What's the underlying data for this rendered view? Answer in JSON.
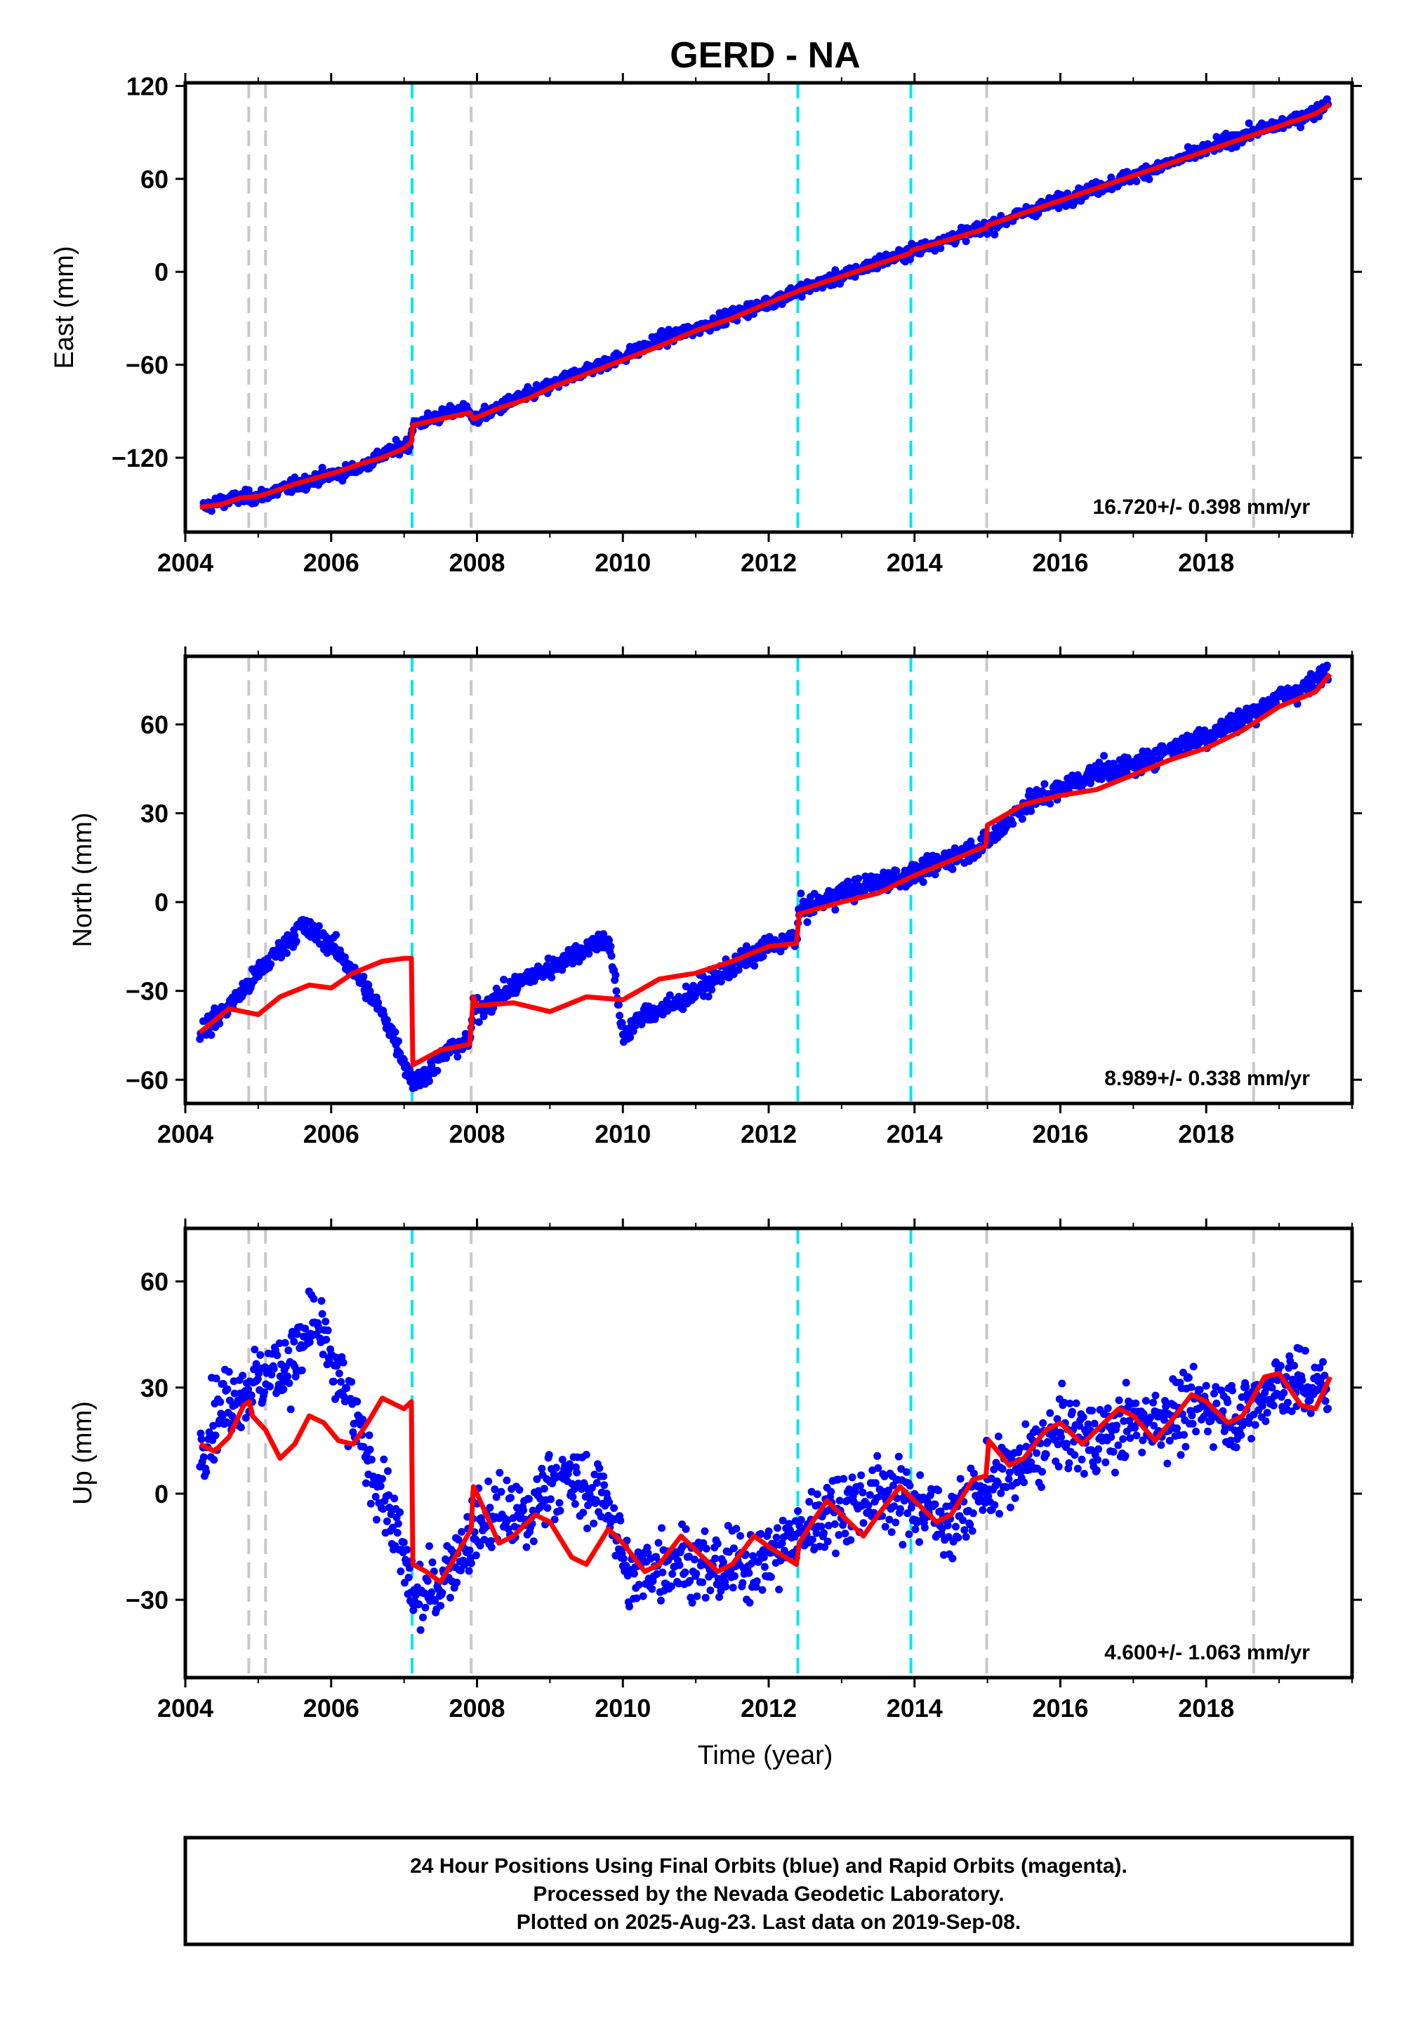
{
  "title": "GERD - NA",
  "caption": {
    "lines": [
      "24 Hour Positions Using Final Orbits (blue) and Rapid Orbits (magenta).",
      "Processed by the Nevada Geodetic Laboratory.",
      "Plotted on 2025-Aug-23. Last data on 2019-Sep-08."
    ]
  },
  "colors": {
    "final_orbit_points": "#0000ff",
    "model_fit": "#ff0000",
    "equipment_change": "#c8c8c8",
    "earthquake": "#00e5ee",
    "frame": "#000000"
  },
  "chart_data": [
    {
      "type": "scatter",
      "component": "East",
      "ylabel": "East (mm)",
      "xlabel": "",
      "xlim": [
        2004.0,
        2020.0
      ],
      "ylim": [
        -168,
        122
      ],
      "xticks": [
        2004,
        2006,
        2008,
        2010,
        2012,
        2014,
        2016,
        2018
      ],
      "yticks": [
        -120,
        -60,
        0,
        60,
        120
      ],
      "rate_label": "16.720+/- 0.398 mm/yr",
      "series_points": {
        "x": [
          2004.25,
          2004.5,
          2004.75,
          2005.0,
          2005.5,
          2005.9,
          2006.3,
          2006.6,
          2006.9,
          2007.08,
          2007.12,
          2007.5,
          2007.9,
          2007.95,
          2008.5,
          2009.0,
          2009.5,
          2010.0,
          2010.5,
          2011.0,
          2011.5,
          2012.0,
          2012.4,
          2013.0,
          2013.5,
          2013.95,
          2014.5,
          2015.0,
          2015.5,
          2016.0,
          2016.5,
          2017.0,
          2017.5,
          2018.0,
          2018.5,
          2019.0,
          2019.5,
          2019.68
        ],
        "y": [
          -152,
          -148,
          -146,
          -145,
          -138,
          -132,
          -128,
          -121,
          -114,
          -111,
          -99,
          -93,
          -88,
          -96,
          -83,
          -74,
          -63,
          -55,
          -44,
          -37,
          -28,
          -20,
          -12,
          -3,
          6,
          13,
          22,
          29,
          38,
          46,
          54,
          62,
          70,
          79,
          88,
          95,
          103,
          111
        ]
      },
      "series_fit": {
        "x": [
          2004.2,
          2004.5,
          2004.75,
          2005.0,
          2005.2,
          2005.5,
          2005.8,
          2006.1,
          2006.4,
          2006.7,
          2007.0,
          2007.1,
          2007.12,
          2007.5,
          2007.9,
          2007.95,
          2008.3,
          2008.7,
          2009.0,
          2009.5,
          2010.0,
          2010.5,
          2011.0,
          2011.5,
          2012.0,
          2012.38,
          2012.42,
          2013.0,
          2013.5,
          2013.94,
          2013.97,
          2014.5,
          2014.98,
          2015.0,
          2015.5,
          2016.0,
          2016.5,
          2017.0,
          2017.5,
          2018.0,
          2018.5,
          2019.0,
          2019.5,
          2019.7
        ],
        "y": [
          -152,
          -150,
          -146,
          -145,
          -142,
          -137,
          -133,
          -129,
          -124,
          -120,
          -114,
          -110,
          -99,
          -95,
          -91,
          -95,
          -88,
          -82,
          -75,
          -66,
          -57,
          -48,
          -38,
          -30,
          -20,
          -13,
          -12,
          -3,
          5,
          12,
          14,
          21,
          28,
          30,
          38,
          46,
          54,
          62,
          70,
          78,
          86,
          94,
          102,
          108
        ]
      }
    },
    {
      "type": "scatter",
      "component": "North",
      "ylabel": "North (mm)",
      "xlabel": "",
      "xlim": [
        2004.0,
        2020.0
      ],
      "ylim": [
        -68,
        83
      ],
      "xticks": [
        2004,
        2006,
        2008,
        2010,
        2012,
        2014,
        2016,
        2018
      ],
      "yticks": [
        -60,
        -30,
        0,
        30,
        60
      ],
      "rate_label": "8.989+/- 0.338 mm/yr",
      "series_points": {
        "x": [
          2004.2,
          2004.4,
          2004.6,
          2005.6,
          2005.7,
          2005.9,
          2006.2,
          2006.5,
          2006.8,
          2007.12,
          2007.3,
          2007.6,
          2007.9,
          2007.95,
          2008.3,
          2008.6,
          2009.0,
          2009.3,
          2009.6,
          2009.8,
          2010.0,
          2010.3,
          2010.7,
          2011.0,
          2011.5,
          2012.0,
          2012.38,
          2012.42,
          2013.0,
          2013.5,
          2014.0,
          2014.5,
          2015.0,
          2015.5,
          2016.0,
          2016.5,
          2017.0,
          2017.5,
          2018.0,
          2018.5,
          2019.0,
          2019.5,
          2019.68
        ],
        "y": [
          -44,
          -40,
          -35,
          -8,
          -10,
          -12,
          -20,
          -30,
          -42,
          -61,
          -58,
          -50,
          -47,
          -37,
          -32,
          -27,
          -22,
          -18,
          -14,
          -12,
          -45,
          -38,
          -35,
          -30,
          -22,
          -15,
          -12,
          -3,
          3,
          7,
          9,
          15,
          20,
          33,
          38,
          44,
          46,
          52,
          56,
          62,
          69,
          74,
          80
        ]
      },
      "series_fit": {
        "x": [
          2004.2,
          2004.6,
          2005.0,
          2005.3,
          2005.7,
          2006.0,
          2006.3,
          2006.7,
          2007.0,
          2007.1,
          2007.12,
          2007.5,
          2007.9,
          2007.95,
          2008.0,
          2008.5,
          2009.0,
          2009.5,
          2010.0,
          2010.5,
          2011.0,
          2011.5,
          2012.0,
          2012.38,
          2012.42,
          2013.0,
          2013.5,
          2014.0,
          2014.5,
          2014.98,
          2015.0,
          2015.5,
          2016.0,
          2016.5,
          2017.0,
          2017.5,
          2018.0,
          2018.5,
          2019.0,
          2019.5,
          2019.7
        ],
        "y": [
          -44,
          -36,
          -38,
          -32,
          -28,
          -29,
          -24,
          -20,
          -19,
          -19,
          -55,
          -50,
          -48,
          -32,
          -35,
          -34,
          -37,
          -32,
          -33,
          -26,
          -24,
          -20,
          -15,
          -14,
          -4,
          0,
          3,
          9,
          14,
          19,
          26,
          33,
          36,
          38,
          43,
          48,
          52,
          58,
          66,
          71,
          77
        ]
      }
    },
    {
      "type": "scatter",
      "component": "Up",
      "ylabel": "Up (mm)",
      "xlabel": "Time (year)",
      "xlim": [
        2004.0,
        2020.0
      ],
      "ylim": [
        -52,
        75
      ],
      "xticks": [
        2004,
        2006,
        2008,
        2010,
        2012,
        2014,
        2016,
        2018
      ],
      "yticks": [
        -30,
        0,
        30,
        60
      ],
      "rate_label": "4.600+/- 1.063 mm/yr",
      "series_points": {
        "x": [
          2004.2,
          2004.35,
          2004.5,
          2005.6,
          2005.75,
          2005.9,
          2006.3,
          2006.5,
          2006.8,
          2007.15,
          2007.4,
          2007.7,
          2008.0,
          2008.3,
          2008.7,
          2009.0,
          2009.4,
          2009.8,
          2010.1,
          2010.4,
          2010.8,
          2011.2,
          2011.6,
          2012.0,
          2012.4,
          2012.8,
          2013.2,
          2013.6,
          2014.0,
          2014.5,
          2015.0,
          2015.5,
          2016.0,
          2016.5,
          2017.0,
          2017.5,
          2018.0,
          2018.5,
          2019.0,
          2019.5,
          2019.68
        ],
        "y": [
          12,
          20,
          25,
          40,
          50,
          42,
          22,
          10,
          -5,
          -30,
          -28,
          -18,
          -10,
          -5,
          -8,
          5,
          2,
          -2,
          -25,
          -20,
          -18,
          -22,
          -20,
          -18,
          -12,
          -5,
          -2,
          0,
          -3,
          -8,
          2,
          8,
          18,
          15,
          20,
          22,
          25,
          22,
          32,
          30,
          30
        ]
      },
      "series_fit": {
        "x": [
          2004.2,
          2004.4,
          2004.6,
          2004.8,
          2004.88,
          2004.92,
          2005.1,
          2005.3,
          2005.5,
          2005.7,
          2005.9,
          2006.1,
          2006.3,
          2006.5,
          2006.7,
          2006.9,
          2007.0,
          2007.1,
          2007.12,
          2007.3,
          2007.5,
          2007.7,
          2007.92,
          2007.95,
          2008.0,
          2008.3,
          2008.5,
          2008.8,
          2009.0,
          2009.3,
          2009.5,
          2009.8,
          2010.0,
          2010.3,
          2010.5,
          2010.8,
          2011.0,
          2011.3,
          2011.5,
          2011.8,
          2012.0,
          2012.38,
          2012.42,
          2012.6,
          2012.8,
          2013.0,
          2013.3,
          2013.5,
          2013.8,
          2014.0,
          2014.3,
          2014.5,
          2014.8,
          2014.98,
          2015.02,
          2015.3,
          2015.5,
          2015.8,
          2016.0,
          2016.3,
          2016.5,
          2016.8,
          2017.0,
          2017.3,
          2017.5,
          2017.8,
          2018.0,
          2018.3,
          2018.5,
          2018.8,
          2019.0,
          2019.3,
          2019.5,
          2019.7
        ],
        "y": [
          14,
          12,
          16,
          25,
          26,
          22,
          18,
          10,
          14,
          22,
          20,
          15,
          14,
          20,
          27,
          25,
          24,
          26,
          -20,
          -22,
          -25,
          -18,
          -10,
          2,
          0,
          -14,
          -12,
          -6,
          -8,
          -18,
          -20,
          -10,
          -14,
          -22,
          -20,
          -12,
          -16,
          -22,
          -20,
          -12,
          -15,
          -20,
          -14,
          -8,
          -2,
          -6,
          -12,
          -6,
          2,
          -2,
          -8,
          -6,
          4,
          5,
          15,
          8,
          10,
          18,
          20,
          14,
          18,
          24,
          22,
          15,
          20,
          28,
          26,
          20,
          22,
          33,
          34,
          25,
          24,
          33
        ]
      }
    }
  ]
}
